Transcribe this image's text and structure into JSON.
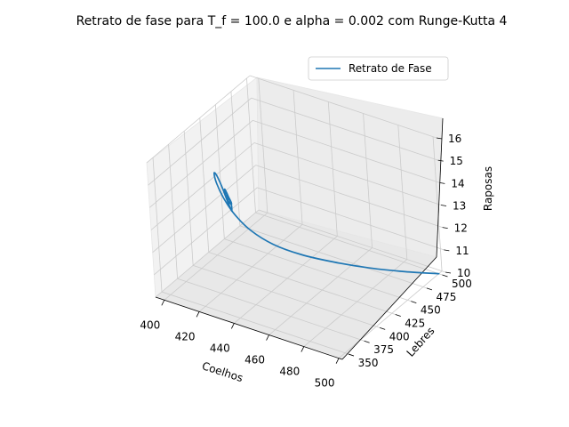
{
  "chart_data": {
    "type": "line",
    "projection": "3d",
    "title": "Retrato de fase para T_f = 100.0 e alpha = 0.002 com Runge-Kutta 4",
    "xlabel": "Coelhos",
    "ylabel": "Lebres",
    "zlabel": "Raposas",
    "x_ticks": [
      "400",
      "420",
      "440",
      "460",
      "480",
      "500"
    ],
    "y_ticks": [
      "350",
      "375",
      "400",
      "425",
      "450",
      "475",
      "500"
    ],
    "z_ticks": [
      "10",
      "11",
      "12",
      "13",
      "14",
      "15",
      "16"
    ],
    "xlim": [
      395,
      502
    ],
    "ylim": [
      340,
      505
    ],
    "zlim": [
      10,
      16
    ],
    "grid": true,
    "legend_position": "top-right",
    "series": [
      {
        "name": "Retrato de Fase",
        "color": "#1f77b4",
        "points": [
          [
            500,
            500,
            10.0
          ],
          [
            488,
            480,
            10.25
          ],
          [
            475,
            460,
            10.55
          ],
          [
            462,
            440,
            10.95
          ],
          [
            450,
            422,
            11.4
          ],
          [
            440,
            407,
            11.95
          ],
          [
            432,
            396,
            12.6
          ],
          [
            426,
            389,
            13.3
          ],
          [
            421,
            386,
            14.0
          ],
          [
            417,
            387,
            14.55
          ],
          [
            414,
            392,
            14.8
          ],
          [
            413,
            398,
            14.55
          ],
          [
            414,
            402,
            14.0
          ],
          [
            416,
            403,
            13.45
          ],
          [
            419,
            401,
            13.1
          ],
          [
            421,
            397,
            13.2
          ],
          [
            422,
            394,
            13.6
          ],
          [
            420,
            394,
            14.0
          ],
          [
            418,
            396,
            14.1
          ],
          [
            417,
            399,
            13.85
          ],
          [
            418,
            400,
            13.5
          ],
          [
            420,
            399,
            13.4
          ],
          [
            421,
            397,
            13.55
          ],
          [
            420,
            396,
            13.8
          ],
          [
            419,
            397,
            13.85
          ],
          [
            419,
            398,
            13.7
          ],
          [
            420,
            398,
            13.6
          ],
          [
            420,
            397,
            13.7
          ]
        ]
      }
    ]
  }
}
